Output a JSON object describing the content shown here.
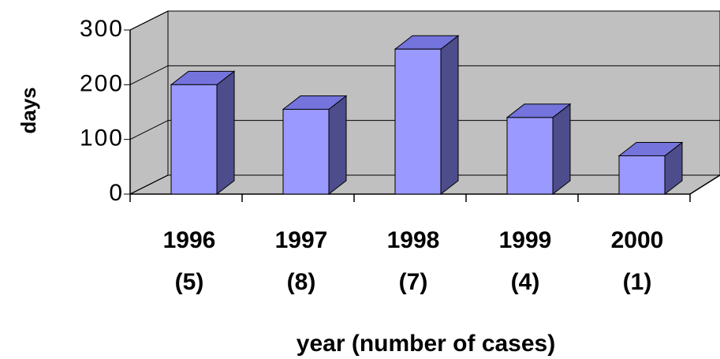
{
  "chart_data": {
    "type": "bar3d",
    "x_label": "year (number of cases)",
    "y_label": "days",
    "categories": [
      "1996 (5)",
      "1997 (8)",
      "1998 (7)",
      "1999 (4)",
      "2000 (1)"
    ],
    "values": [
      200,
      155,
      265,
      140,
      70
    ],
    "color": "#9999ff",
    "ylim": [
      0,
      300
    ],
    "yticks": [
      0,
      100,
      200,
      300
    ],
    "grid": true
  }
}
